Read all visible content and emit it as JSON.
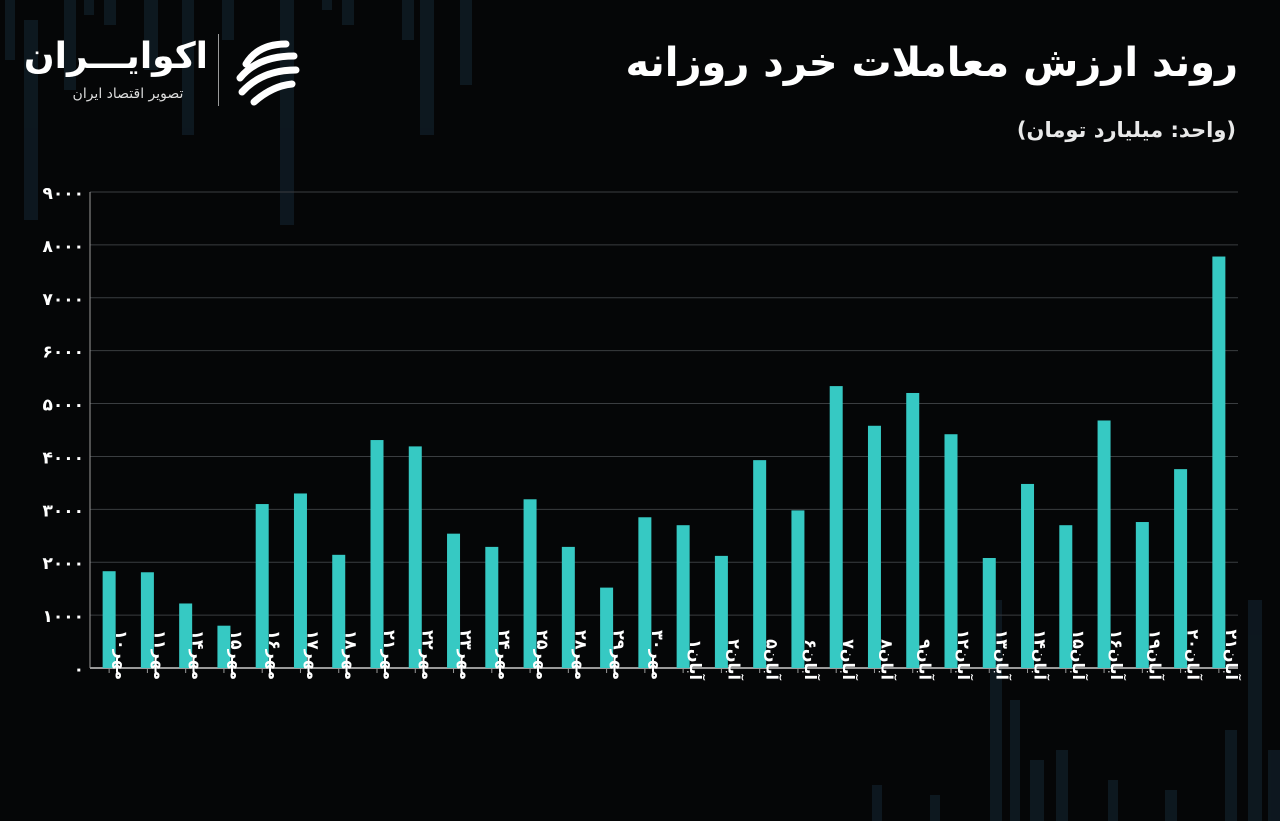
{
  "header": {
    "title": "روند ارزش معاملات خرد روزانه",
    "unit": "(واحد: میلیارد تومان)"
  },
  "logo": {
    "name": "اکوایـــران",
    "tagline": "تصویر اقتصاد ایران",
    "mark_icon": "ekoiran-swirl-icon"
  },
  "colors": {
    "background": "#050607",
    "bar": "#36c9c3",
    "grid": "#3a3d40",
    "text": "#ffffff"
  },
  "chart_data": {
    "type": "bar",
    "categories": [
      "مهر۱۰",
      "مهر۱۱",
      "مهر۱۴",
      "مهر۱۵",
      "مهر۱۶",
      "مهر۱۷",
      "مهر۱۸",
      "مهر۲۱",
      "مهر۲۲",
      "مهر۲۳",
      "مهر۲۴",
      "مهر۲۵",
      "مهر۲۸",
      "مهر۲۹",
      "مهر۳۰",
      "آبان۱",
      "آبان۲",
      "آبان۵",
      "آبان۶",
      "آبان۷",
      "آبان۸",
      "آبان۹",
      "آبان۱۲",
      "آبان۱۳",
      "آبان۱۴",
      "آبان۱۵",
      "آبان۱۶",
      "آبان۱۹",
      "آبان۲۰",
      "آبان۲۱"
    ],
    "values": [
      1830,
      1810,
      1220,
      800,
      3100,
      3300,
      2140,
      4310,
      4190,
      2540,
      2290,
      3190,
      2290,
      1520,
      2850,
      2700,
      2120,
      3930,
      2980,
      5330,
      4580,
      5200,
      4420,
      2080,
      3480,
      2700,
      4680,
      2760,
      3760,
      7780
    ],
    "yticks": [
      "۰",
      "۱۰۰۰",
      "۲۰۰۰",
      "۳۰۰۰",
      "۴۰۰۰",
      "۵۰۰۰",
      "۶۰۰۰",
      "۷۰۰۰",
      "۸۰۰۰",
      "۹۰۰۰"
    ],
    "ylim": [
      0,
      9000
    ],
    "grid": true,
    "xlabel": "",
    "ylabel": ""
  }
}
